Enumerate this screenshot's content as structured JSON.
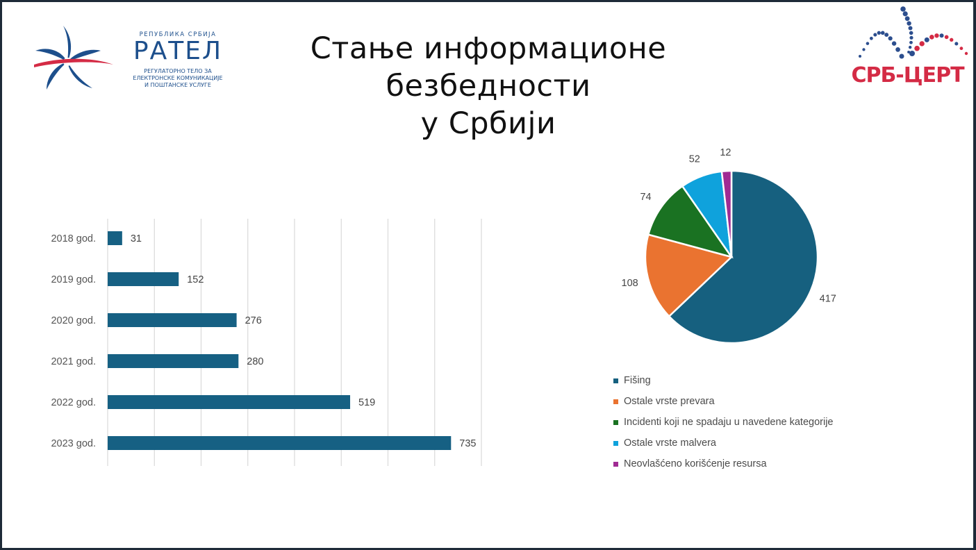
{
  "slide": {
    "title_line1": "Стање информационе безбедности",
    "title_line2": "у Србији"
  },
  "logos": {
    "ratel": {
      "country": "РЕПУБЛИКА СРБИЈА",
      "name": "РАТЕЛ",
      "desc_line1": "РЕГУЛАТОРНО ТЕЛО ЗА",
      "desc_line2": "ЕЛЕКТРОНСКЕ КОМУНИКАЦИЈЕ",
      "desc_line3": "И ПОШТАНСКЕ УСЛУГЕ"
    },
    "srbcert": {
      "name": "СРБ-ЦЕРТ"
    }
  },
  "colors": {
    "bar": "#166083",
    "fising": "#16607f",
    "ostale_prevare": "#ea7330",
    "incidenti": "#1a7222",
    "malver": "#0fa2dc",
    "neovlasceno": "#a02b93",
    "ratel_blue": "#1d4f8c",
    "ratel_red": "#d42b45"
  },
  "chart_data": [
    {
      "type": "bar",
      "orientation": "horizontal",
      "categories": [
        "2018 god.",
        "2019 god.",
        "2020 god.",
        "2021 god.",
        "2022 god.",
        "2023 god."
      ],
      "values": [
        31,
        152,
        276,
        280,
        519,
        735
      ],
      "xlim": [
        0,
        800
      ],
      "grid": true,
      "data_labels": true
    },
    {
      "type": "pie",
      "labels": [
        "Fišing",
        "Ostale vrste prevara",
        "Incidenti koji ne spadaju u navedene kategorije",
        "Ostale vrste malvera",
        "Neovlašćeno korišćenje resursa"
      ],
      "values": [
        417,
        108,
        74,
        52,
        12
      ],
      "colors": [
        "#16607f",
        "#ea7330",
        "#1a7222",
        "#0fa2dc",
        "#a02b93"
      ],
      "legend": "bottom",
      "data_labels": true
    }
  ]
}
